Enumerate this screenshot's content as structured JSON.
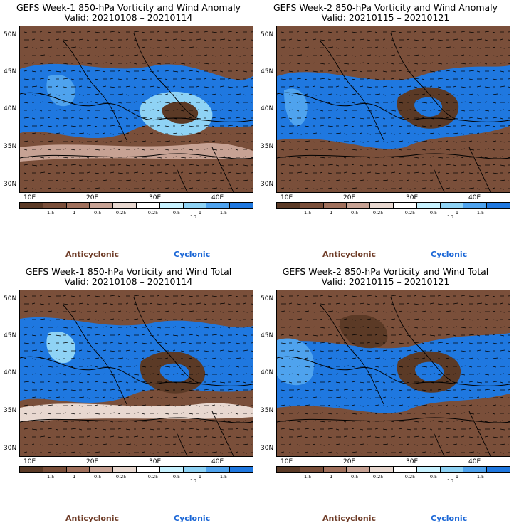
{
  "panels": [
    {
      "title": "GEFS Week-1 850-hPa Vorticity and Wind Anomaly",
      "valid": "Valid: 20210108 – 20210114"
    },
    {
      "title": "GEFS Week-2 850-hPa Vorticity and Wind Anomaly",
      "valid": "Valid: 20210115 – 20210121"
    },
    {
      "title": "GEFS Week-1 850-hPa Vorticity and Wind Total",
      "valid": "Valid: 20210108 – 20210114"
    },
    {
      "title": "GEFS Week-2 850-hPa Vorticity and Wind Total",
      "valid": "Valid: 20210115 – 20210121"
    }
  ],
  "lat_labels": [
    "50N",
    "45N",
    "40N",
    "35N",
    "30N"
  ],
  "lon_labels": [
    "10E",
    "20E",
    "30E",
    "40E"
  ],
  "colorbar": {
    "tick_labels": [
      "-1.5",
      "-1",
      "-0.5",
      "-0.25",
      "0.25",
      "0.5",
      "1",
      "1.5"
    ],
    "vector_reference": "10",
    "colors": [
      "#5b3a26",
      "#7a4f3a",
      "#a0705c",
      "#c7a294",
      "#e8d8d0",
      "#ffffff",
      "#c8f2ff",
      "#8fd3f5",
      "#4fa3ee",
      "#1f78e0"
    ]
  },
  "legend": {
    "anticyclonic": "Anticyclonic",
    "cyclonic": "Cyclonic",
    "anticyclonic_color": "#6e3b26",
    "cyclonic_color": "#1a66d6"
  }
}
